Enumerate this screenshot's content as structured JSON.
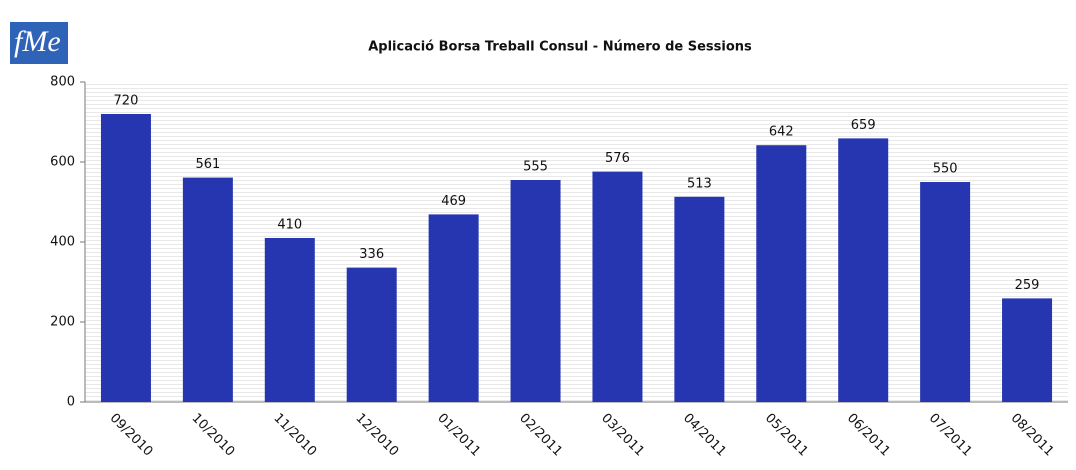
{
  "logo": "fMe",
  "chart_data": {
    "type": "bar",
    "title": "Aplicació Borsa Treball Consul  - Número de Sessions",
    "categories": [
      "09/2010",
      "10/2010",
      "11/2010",
      "12/2010",
      "01/2011",
      "02/2011",
      "03/2011",
      "04/2011",
      "05/2011",
      "06/2011",
      "07/2011",
      "08/2011"
    ],
    "values": [
      720,
      561,
      410,
      336,
      469,
      555,
      576,
      513,
      642,
      659,
      550,
      259
    ],
    "color": "#2536b0",
    "ylim": [
      0,
      800
    ],
    "yticks": [
      0,
      200,
      400,
      600,
      800
    ]
  }
}
